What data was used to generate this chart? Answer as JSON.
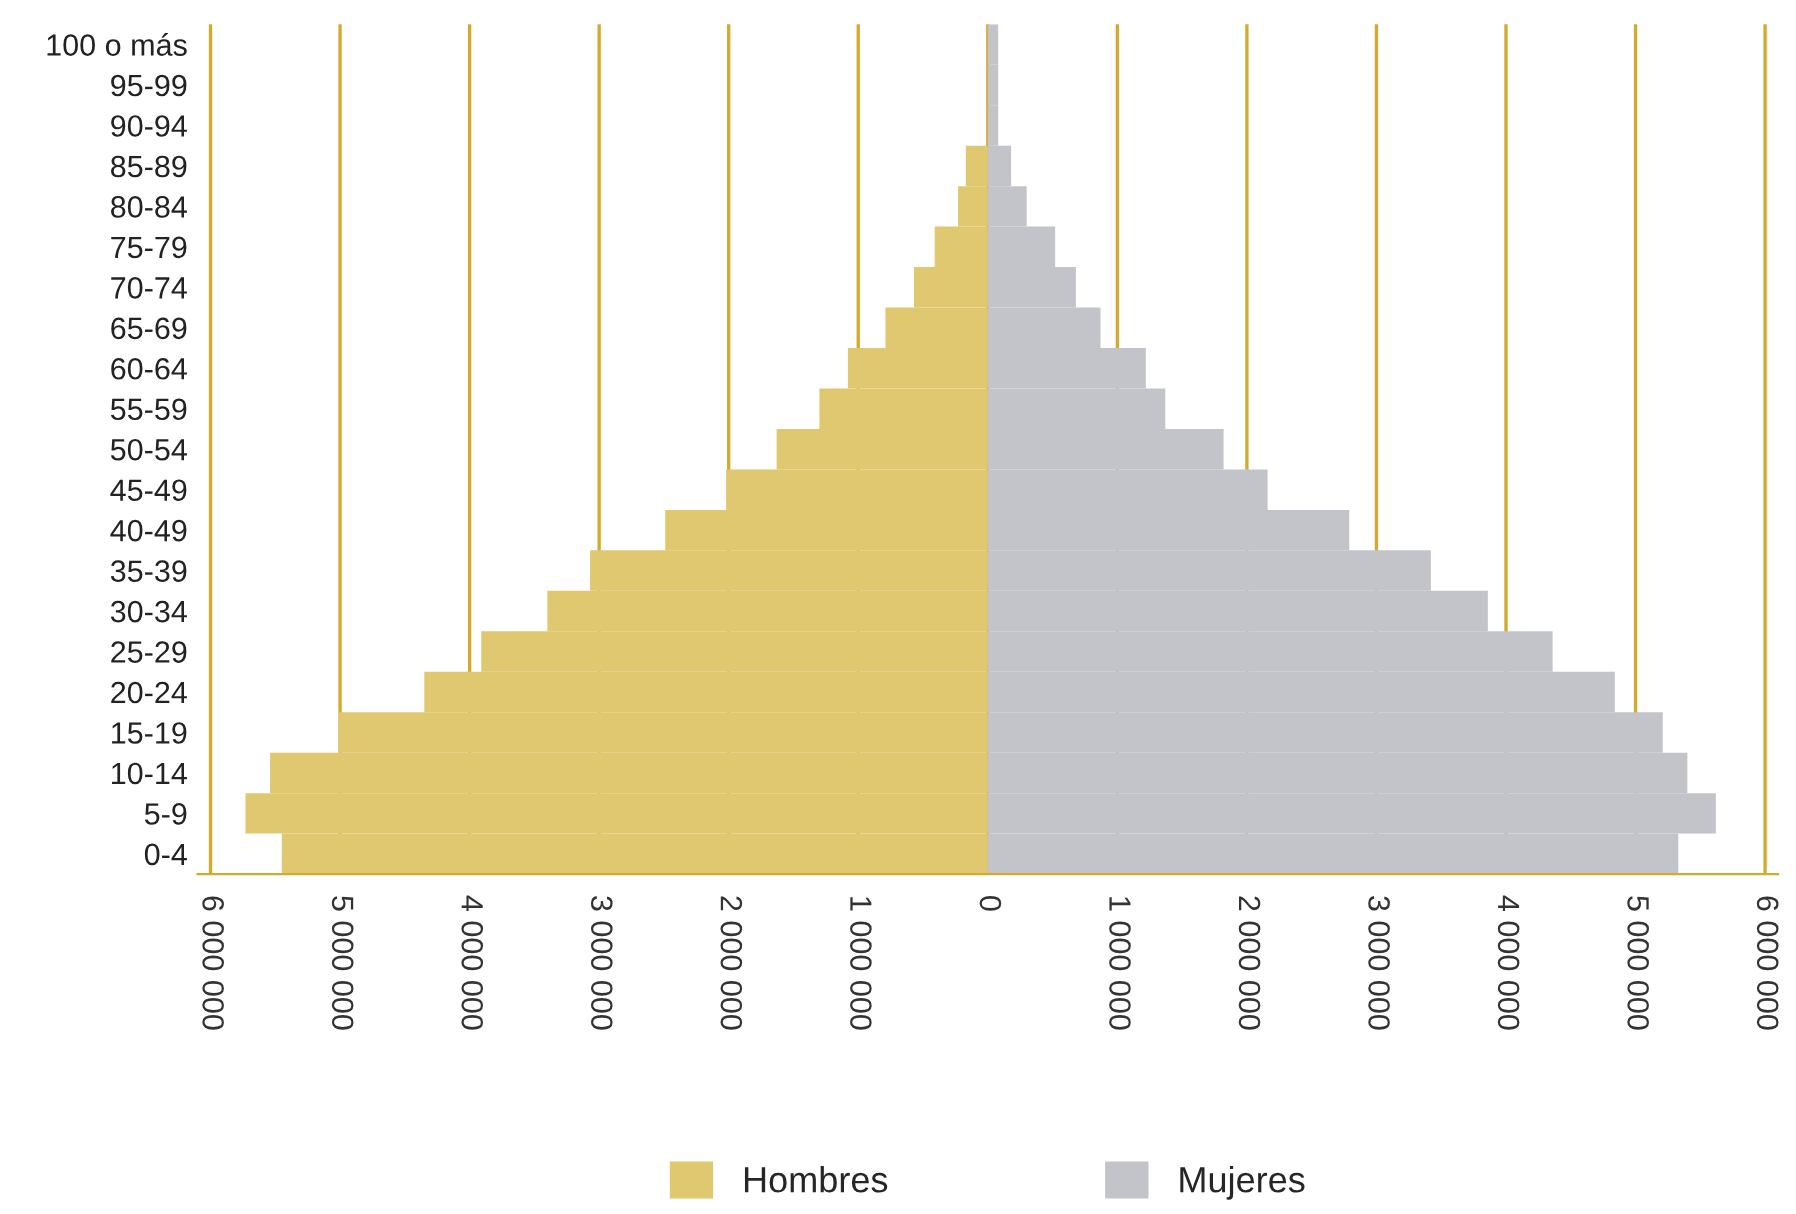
{
  "chart_data": {
    "type": "bar",
    "orientation": "horizontal",
    "stacked": true,
    "categories": [
      "100 o más",
      "95-99",
      "90-94",
      "85-89",
      "80-84",
      "75-79",
      "70-74",
      "65-69",
      "60-64",
      "55-59",
      "50-54",
      "45-49",
      "40-49",
      "35-39",
      "30-34",
      "25-29",
      "20-24",
      "15-19",
      "10-14",
      "5-9",
      "0-4"
    ],
    "series": [
      {
        "name": "Hombres",
        "color": "#dfc86f",
        "values": [
          0,
          0,
          0,
          -170000,
          -230000,
          -410000,
          -570000,
          -790000,
          -1080000,
          -1300000,
          -1630000,
          -2020000,
          -2490000,
          -3070000,
          -3400000,
          -3910000,
          -4350000,
          -5010000,
          -5540000,
          -5730000,
          -5450000
        ]
      },
      {
        "name": "Mujeres",
        "color": "#c3c4c9",
        "values": [
          80000,
          80000,
          80000,
          180000,
          300000,
          520000,
          680000,
          870000,
          1220000,
          1370000,
          1820000,
          2160000,
          2790000,
          3420000,
          3860000,
          4360000,
          4840000,
          5210000,
          5400000,
          5620000,
          5330000
        ]
      }
    ],
    "xlim": [
      -6100000,
      6100000
    ],
    "xticks": [
      {
        "value": -6000000,
        "label": "6 000 000"
      },
      {
        "value": -5000000,
        "label": "5 000 000"
      },
      {
        "value": -4000000,
        "label": "4 000 000"
      },
      {
        "value": -3000000,
        "label": "3 000 000"
      },
      {
        "value": -2000000,
        "label": "2 000 000"
      },
      {
        "value": -1000000,
        "label": "1 000 000"
      },
      0,
      {
        "value": 1000000,
        "label": "1 000 000"
      },
      {
        "value": 2000000,
        "label": "2 000 000"
      },
      {
        "value": 3000000,
        "label": "3 000 000"
      },
      {
        "value": 4000000,
        "label": "4 000 000"
      },
      {
        "value": 5000000,
        "label": "5 000 000"
      },
      {
        "value": 6000000,
        "label": "6 000 000"
      }
    ],
    "grid": "x",
    "legend": "bottom"
  }
}
